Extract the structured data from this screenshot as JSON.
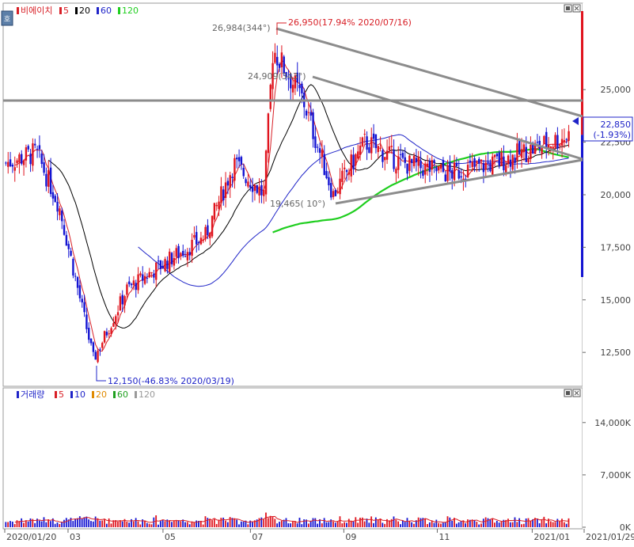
{
  "price_panel": {
    "stock_name": "비에이치",
    "ma_labels": [
      {
        "label": "5",
        "color": "#d81f26"
      },
      {
        "label": "20",
        "color": "#000000"
      },
      {
        "label": "60",
        "color": "#1f24c8"
      },
      {
        "label": "120",
        "color": "#1fce1f"
      }
    ],
    "current_price": "22,850",
    "current_change": "(-1.93%)"
  },
  "volume_panel": {
    "title": "거래량",
    "ma_labels": [
      {
        "label": "5",
        "color": "#d81f26"
      },
      {
        "label": "10",
        "color": "#1f24c8"
      },
      {
        "label": "20",
        "color": "#e08a00"
      },
      {
        "label": "60",
        "color": "#1fa01f"
      },
      {
        "label": "120",
        "color": "#9a9a9a"
      }
    ]
  },
  "annotations": {
    "high": "26,950(17.94% 2020/07/16)",
    "low": "12,150(-46.83% 2020/03/19)",
    "trend_top": "26,984(344°)",
    "trend_mid": "24,909(343°)",
    "trend_bottom": "19,465( 10°)"
  },
  "colors": {
    "up": "#e0141e",
    "down": "#1414d2",
    "ma5": "#d81f26",
    "ma20": "#000000",
    "ma60": "#1f24c8",
    "ma120": "#1fce1f",
    "trendline": "#8c8c8c"
  },
  "chart_data": [
    {
      "type": "candlestick",
      "title": "비에이치",
      "x_ticks": [
        "2020/01/20",
        "03",
        "05",
        "07",
        "09",
        "11",
        "2021/01",
        "2021/01/29"
      ],
      "y_ticks": [
        "12,500",
        "15,000",
        "17,500",
        "20,000",
        "22,500",
        "25,000"
      ],
      "ylim": [
        11000,
        29000
      ],
      "approx_close_path": [
        {
          "date": "2020/01/20",
          "close": 21500
        },
        {
          "date": "2020/02/10",
          "close": 22000
        },
        {
          "date": "2020/02/25",
          "close": 19500
        },
        {
          "date": "2020/03/19",
          "close": 12150
        },
        {
          "date": "2020/04/10",
          "close": 15500
        },
        {
          "date": "2020/05/10",
          "close": 17000
        },
        {
          "date": "2020/06/01",
          "close": 18000
        },
        {
          "date": "2020/06/20",
          "close": 21500
        },
        {
          "date": "2020/07/10",
          "close": 20000
        },
        {
          "date": "2020/07/16",
          "close": 26950
        },
        {
          "date": "2020/08/05",
          "close": 24500
        },
        {
          "date": "2020/08/25",
          "close": 20000
        },
        {
          "date": "2020/09/15",
          "close": 22500
        },
        {
          "date": "2020/10/10",
          "close": 21500
        },
        {
          "date": "2020/11/10",
          "close": 21000
        },
        {
          "date": "2020/12/10",
          "close": 21500
        },
        {
          "date": "2021/01/29",
          "close": 22850
        }
      ],
      "current_price": 22850,
      "change_pct": -1.93
    },
    {
      "type": "bar",
      "title": "거래량",
      "y_ticks": [
        "0K",
        "7,000K",
        "14,000K"
      ],
      "ylim": [
        0,
        18000
      ]
    }
  ]
}
